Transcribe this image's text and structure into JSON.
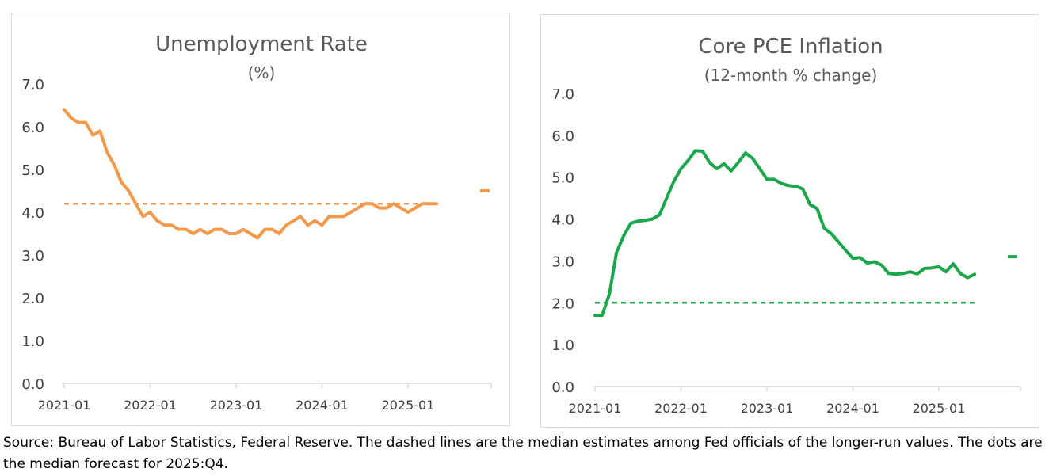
{
  "chart_data": [
    {
      "type": "line",
      "title": "Unemployment Rate",
      "subtitle": "(%)",
      "xlabel": "",
      "ylabel": "",
      "ylim": [
        0,
        7
      ],
      "yticks": [
        "0.0",
        "1.0",
        "2.0",
        "3.0",
        "4.0",
        "5.0",
        "6.0",
        "7.0"
      ],
      "xticks": [
        "2021-01",
        "2022-01",
        "2023-01",
        "2024-01",
        "2025-01"
      ],
      "color": "#f4994a",
      "series": [
        {
          "name": "Unemployment rate",
          "start": "2021-01",
          "values": [
            6.4,
            6.2,
            6.1,
            6.1,
            5.8,
            5.9,
            5.4,
            5.1,
            4.7,
            4.5,
            4.2,
            3.9,
            4.0,
            3.8,
            3.7,
            3.7,
            3.6,
            3.6,
            3.5,
            3.6,
            3.5,
            3.6,
            3.6,
            3.5,
            3.5,
            3.6,
            3.5,
            3.4,
            3.6,
            3.6,
            3.5,
            3.7,
            3.8,
            3.9,
            3.7,
            3.8,
            3.7,
            3.9,
            3.9,
            3.9,
            4.0,
            4.1,
            4.2,
            4.2,
            4.1,
            4.1,
            4.2,
            4.1,
            4.0,
            4.1,
            4.2,
            4.2,
            4.2
          ]
        }
      ],
      "longer_run": 4.2,
      "forecast": {
        "period": "2025:Q4",
        "value": 4.5
      }
    },
    {
      "type": "line",
      "title": "Core PCE Inflation",
      "subtitle": "(12-month % change)",
      "xlabel": "",
      "ylabel": "",
      "ylim": [
        0,
        7
      ],
      "yticks": [
        "0.0",
        "1.0",
        "2.0",
        "3.0",
        "4.0",
        "5.0",
        "6.0",
        "7.0"
      ],
      "xticks": [
        "2021-01",
        "2022-01",
        "2023-01",
        "2024-01",
        "2025-01"
      ],
      "color": "#1aa64a",
      "series": [
        {
          "name": "Core PCE inflation",
          "start": "2021-01",
          "values": [
            1.7,
            1.7,
            2.2,
            3.2,
            3.6,
            3.9,
            3.95,
            3.97,
            4.0,
            4.1,
            4.5,
            4.9,
            5.2,
            5.4,
            5.63,
            5.62,
            5.35,
            5.2,
            5.32,
            5.15,
            5.35,
            5.58,
            5.45,
            5.2,
            4.95,
            4.95,
            4.85,
            4.8,
            4.78,
            4.72,
            4.35,
            4.25,
            3.78,
            3.65,
            3.45,
            3.25,
            3.06,
            3.08,
            2.95,
            2.98,
            2.9,
            2.7,
            2.68,
            2.7,
            2.74,
            2.69,
            2.82,
            2.83,
            2.86,
            2.74,
            2.93,
            2.7,
            2.6,
            2.68
          ]
        }
      ],
      "longer_run": 2.0,
      "forecast": {
        "period": "2025:Q4",
        "value": 3.1
      }
    }
  ],
  "source_note": "Source: Bureau of Labor Statistics, Federal Reserve. The dashed lines are the median estimates among Fed officials of the longer-run values. The dots are the median forecast for 2025:Q4."
}
